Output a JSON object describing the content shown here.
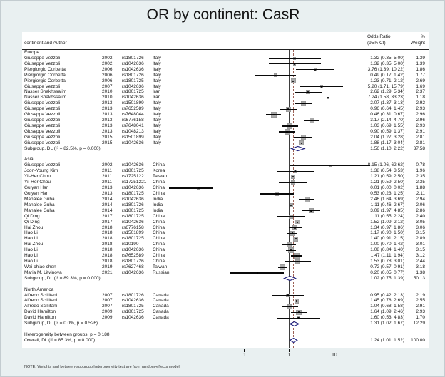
{
  "title": "OR by continent: CasR",
  "header": {
    "left_label": "continent and Author",
    "or_label_line1": "Odds Ratio",
    "or_label_line2": "(95% CI)",
    "weight_label_line1": "%",
    "weight_label_line2": "Weight"
  },
  "axis": {
    "scale": "log",
    "tick_labels": [
      ".1",
      "1",
      "10"
    ],
    "tick_values": [
      0.1,
      1,
      10
    ],
    "null_line_value": 1,
    "overall_dashed_value": 1.24
  },
  "note": "NOTE: Weights and between-subgroup heterogeneity test are from random-effects model",
  "colors": {
    "figure_background": "#e9f0f1",
    "plot_background": "#ffffff",
    "marker_box": "#ababab",
    "ci_line": "#0a0a0a",
    "diamond_stroke": "#20207d",
    "null_line": "#3d3d3d",
    "overall_dashed_line": "#9d6156"
  },
  "chart_data": {
    "type": "forest",
    "effect_measure": "Odds Ratio (95% CI)",
    "xlim": [
      0.004,
      100
    ],
    "x_ticks": [
      0.1,
      1,
      10
    ],
    "groups": [
      {
        "name": "Europe",
        "studies": [
          {
            "author": "Giuseppe Vezzoli",
            "year": "2002",
            "snp": "rs1801726",
            "country": "Italy",
            "or": "1.32",
            "lo": "0.35",
            "hi": "5.00",
            "weight": "1.39"
          },
          {
            "author": "Giuseppe Vezzoli",
            "year": "2002",
            "snp": "rs1042636",
            "country": "Italy",
            "or": "1.32",
            "lo": "0.35",
            "hi": "5.00",
            "weight": "1.39"
          },
          {
            "author": "Piergiorgio Corbetta",
            "year": "2006",
            "snp": "rs1042636",
            "country": "Italy",
            "or": "3.76",
            "lo": "1.39",
            "hi": "10.22",
            "weight": "1.86"
          },
          {
            "author": "Piergiorgio Corbetta",
            "year": "2006",
            "snp": "rs1801726",
            "country": "Italy",
            "or": "0.49",
            "lo": "0.17",
            "hi": "1.42",
            "weight": "1.77"
          },
          {
            "author": "Piergiorgio Corbetta",
            "year": "2006",
            "snp": "rs1801725",
            "country": "Italy",
            "or": "1.23",
            "lo": "0.71",
            "hi": "2.12",
            "weight": "2.69"
          },
          {
            "author": "Giuseppe Vezzoli",
            "year": "2007",
            "snp": "rs1042636",
            "country": "Italy",
            "or": "5.20",
            "lo": "1.71",
            "hi": "15.79",
            "weight": "1.69"
          },
          {
            "author": "Nasser Shakhssalim",
            "year": "2010",
            "snp": "rs1801725",
            "country": "Iran",
            "or": "2.62",
            "lo": "1.29",
            "hi": "5.34",
            "weight": "2.37"
          },
          {
            "author": "Nasser Shakhssalim",
            "year": "2010",
            "snp": "rs1042636",
            "country": "Iran",
            "or": "7.24",
            "lo": "1.58",
            "hi": "33.23",
            "weight": "1.18"
          },
          {
            "author": "Giuseppe Vezzoli",
            "year": "2013",
            "snp": "rs1501899",
            "country": "Italy",
            "or": "2.07",
            "lo": "1.37",
            "hi": "3.13",
            "weight": "2.92"
          },
          {
            "author": "Giuseppe Vezzoli",
            "year": "2013",
            "snp": "rs7652589",
            "country": "Italy",
            "or": "0.96",
            "lo": "0.64",
            "hi": "1.45",
            "weight": "2.93"
          },
          {
            "author": "Giuseppe Vezzoli",
            "year": "2013",
            "snp": "rs7648044",
            "country": "Italy",
            "or": "0.46",
            "lo": "0.31",
            "hi": "0.67",
            "weight": "2.96"
          },
          {
            "author": "Giuseppe Vezzoli",
            "year": "2013",
            "snp": "rs6776158",
            "country": "Italy",
            "or": "3.17",
            "lo": "2.14",
            "hi": "4.70",
            "weight": "2.96"
          },
          {
            "author": "Giuseppe Vezzoli",
            "year": "2013",
            "snp": "rs7648041",
            "country": "Italy",
            "or": "1.03",
            "lo": "0.69",
            "hi": "1.55",
            "weight": "2.93"
          },
          {
            "author": "Giuseppe Vezzoli",
            "year": "2013",
            "snp": "rs1048213",
            "country": "Italy",
            "or": "0.90",
            "lo": "0.59",
            "hi": "1.37",
            "weight": "2.91"
          },
          {
            "author": "Giuseppe Vezzoli",
            "year": "2015",
            "snp": "rs1501899",
            "country": "Italy",
            "or": "2.04",
            "lo": "1.27",
            "hi": "3.28",
            "weight": "2.81"
          },
          {
            "author": "Giuseppe Vezzoli",
            "year": "2015",
            "snp": "rs1042636",
            "country": "Italy",
            "or": "1.88",
            "lo": "1.17",
            "hi": "3.04",
            "weight": "2.81"
          }
        ],
        "subgroup": {
          "label": "Subgroup, DL (I² = 82.5%, p = 0.000)",
          "or": "1.56",
          "lo": "1.10",
          "hi": "2.22",
          "weight": "37.58"
        }
      },
      {
        "name": "Asia",
        "studies": [
          {
            "author": "Giuseppe Vezzoli",
            "year": "2002",
            "snp": "rs1042636",
            "country": "China",
            "or": "8.15",
            "lo": "1.06",
            "hi": "62.62",
            "weight": "0.78"
          },
          {
            "author": "Joon-Young Kim",
            "year": "2011",
            "snp": "rs1801725",
            "country": "Korea",
            "or": "1.38",
            "lo": "0.54",
            "hi": "3.53",
            "weight": "1.96"
          },
          {
            "author": "Yii-Her Chou",
            "year": "2011",
            "snp": "rs17251221",
            "country": "Taiwan",
            "or": "1.21",
            "lo": "0.59",
            "hi": "2.50",
            "weight": "2.35"
          },
          {
            "author": "Yii-Her Chou",
            "year": "2011",
            "snp": "rs17251221",
            "country": "China",
            "or": "1.21",
            "lo": "0.59",
            "hi": "2.50",
            "weight": "2.35"
          },
          {
            "author": "Guiyan Han",
            "year": "2013",
            "snp": "rs1042636",
            "country": "China",
            "or": "0.01",
            "lo": "0.00",
            "hi": "0.02",
            "weight": "1.88"
          },
          {
            "author": "Guiyan Han",
            "year": "2013",
            "snp": "rs1801725",
            "country": "China",
            "or": "0.53",
            "lo": "0.23",
            "hi": "1.25",
            "weight": "2.11"
          },
          {
            "author": "Manalee Guha",
            "year": "2014",
            "snp": "rs1042636",
            "country": "India",
            "or": "2.46",
            "lo": "1.64",
            "hi": "3.69",
            "weight": "2.94"
          },
          {
            "author": "Manalee Guha",
            "year": "2014",
            "snp": "rs1801726",
            "country": "India",
            "or": "1.11",
            "lo": "0.46",
            "hi": "2.67",
            "weight": "2.06"
          },
          {
            "author": "Manalee Guha",
            "year": "2014",
            "snp": "rs1801725",
            "country": "India",
            "or": "3.09",
            "lo": "1.97",
            "hi": "4.85",
            "weight": "2.86"
          },
          {
            "author": "Qi Ding",
            "year": "2017",
            "snp": "rs1801725",
            "country": "China",
            "or": "1.11",
            "lo": "0.55",
            "hi": "2.24",
            "weight": "2.40"
          },
          {
            "author": "Qi Ding",
            "year": "2017",
            "snp": "rs1042636",
            "country": "China",
            "or": "1.52",
            "lo": "1.09",
            "hi": "2.12",
            "weight": "3.05"
          },
          {
            "author": "Hai Zhou",
            "year": "2018",
            "snp": "rs6776158",
            "country": "China",
            "or": "1.34",
            "lo": "0.97",
            "hi": "1.86",
            "weight": "3.06"
          },
          {
            "author": "Hao Li",
            "year": "2018",
            "snp": "rs1501899",
            "country": "China",
            "or": "1.17",
            "lo": "0.90",
            "hi": "1.50",
            "weight": "3.15"
          },
          {
            "author": "Hao Li",
            "year": "2018",
            "snp": "rs1801725",
            "country": "China",
            "or": "1.40",
            "lo": "0.91",
            "hi": "2.15",
            "weight": "2.89"
          },
          {
            "author": "Hai Zhou",
            "year": "2018",
            "snp": "rs10190",
            "country": "China",
            "or": "1.00",
            "lo": "0.70",
            "hi": "1.42",
            "weight": "3.01"
          },
          {
            "author": "Hao Li",
            "year": "2018",
            "snp": "rs1042636",
            "country": "China",
            "or": "1.08",
            "lo": "0.84",
            "hi": "1.40",
            "weight": "3.15"
          },
          {
            "author": "Hao Li",
            "year": "2018",
            "snp": "rs7652589",
            "country": "China",
            "or": "1.47",
            "lo": "1.11",
            "hi": "1.94",
            "weight": "3.12"
          },
          {
            "author": "Hao Li",
            "year": "2018",
            "snp": "rs1801726",
            "country": "China",
            "or": "1.53",
            "lo": "0.78",
            "hi": "3.01",
            "weight": "2.44"
          },
          {
            "author": "Wei-chiao chen",
            "year": "2019",
            "snp": "rs7627468",
            "country": "Taiwan",
            "or": "0.72",
            "lo": "0.57",
            "hi": "0.91",
            "weight": "3.18"
          },
          {
            "author": "Maria M. Litvinova",
            "year": "2021",
            "snp": "rs1042636",
            "country": "Russian",
            "or": "0.20",
            "lo": "0.05",
            "hi": "0.77",
            "weight": "1.38"
          }
        ],
        "subgroup": {
          "label": "Subgroup, DL (I² = 89.3%, p = 0.000)",
          "or": "1.02",
          "lo": "0.75",
          "hi": "1.39",
          "weight": "50.13"
        }
      },
      {
        "name": "North America",
        "studies": [
          {
            "author": "Alfredo Scillitani",
            "year": "2007",
            "snp": "rs1801726",
            "country": "Canada",
            "or": "0.95",
            "lo": "0.42",
            "hi": "2.13",
            "weight": "2.19"
          },
          {
            "author": "Alfredo Scillitani",
            "year": "2007",
            "snp": "rs1042636",
            "country": "Canada",
            "or": "1.45",
            "lo": "0.78",
            "hi": "2.69",
            "weight": "2.55"
          },
          {
            "author": "Alfredo Scillitani",
            "year": "2007",
            "snp": "rs1801725",
            "country": "Canada",
            "or": "1.04",
            "lo": "0.68",
            "hi": "1.58",
            "weight": "2.91"
          },
          {
            "author": "David Hamilton",
            "year": "2009",
            "snp": "rs1801725",
            "country": "Canada",
            "or": "1.64",
            "lo": "1.09",
            "hi": "2.46",
            "weight": "2.93"
          },
          {
            "author": "David Hamilton",
            "year": "2009",
            "snp": "rs1042636",
            "country": "Canada",
            "or": "1.60",
            "lo": "0.53",
            "hi": "4.83",
            "weight": "1.70"
          }
        ],
        "subgroup": {
          "label": "Subgroup, DL (I² = 0.0%, p = 0.526)",
          "or": "1.31",
          "lo": "1.02",
          "hi": "1.67",
          "weight": "12.29"
        }
      }
    ],
    "heterogeneity_between_groups": "Heterogeneity between groups: p = 0.188",
    "overall": {
      "label": "Overall, DL (I² = 85.3%, p = 0.000)",
      "or": "1.24",
      "lo": "1.01",
      "hi": "1.52",
      "weight": "100.00"
    }
  }
}
